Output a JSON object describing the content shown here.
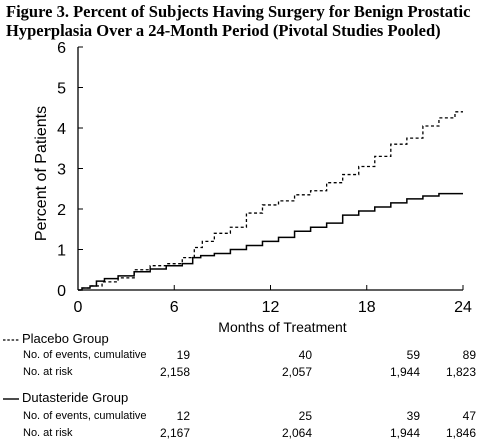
{
  "figure": {
    "title_line1": "Figure 3. Percent of Subjects Having Surgery for Benign Prostatic",
    "title_line2": "Hyperplasia Over a 24-Month Period (Pivotal Studies Pooled)"
  },
  "chart_data": {
    "type": "line",
    "xlabel": "Months of Treatment",
    "ylabel": "Percent of Patients",
    "xlim": [
      0,
      24
    ],
    "ylim": [
      0,
      6
    ],
    "xticks": [
      0,
      6,
      12,
      18,
      24
    ],
    "yticks": [
      0,
      1,
      2,
      3,
      4,
      5,
      6
    ],
    "grid": false,
    "legend": "below",
    "series": [
      {
        "name": "Placebo Group",
        "style": "dashed",
        "x": [
          0,
          0.5,
          1,
          2,
          3,
          4,
          5,
          6,
          7,
          7.5,
          8,
          9,
          10,
          11,
          12,
          13,
          14,
          15,
          16,
          17,
          18,
          19,
          20,
          21,
          22,
          23,
          24
        ],
        "y": [
          0,
          0.05,
          0.1,
          0.2,
          0.3,
          0.5,
          0.6,
          0.65,
          0.8,
          1.05,
          1.2,
          1.4,
          1.55,
          1.9,
          2.1,
          2.2,
          2.35,
          2.45,
          2.65,
          2.85,
          3.05,
          3.3,
          3.6,
          3.75,
          4.05,
          4.25,
          4.4
        ]
      },
      {
        "name": "Dutasteride Group",
        "style": "solid",
        "x": [
          0,
          0.5,
          1,
          1.3,
          2,
          3,
          4,
          5,
          6,
          7,
          7.3,
          8,
          9,
          10,
          11,
          12,
          13,
          14,
          15,
          16,
          17,
          18,
          19,
          20,
          21,
          22,
          23,
          24
        ],
        "y": [
          0,
          0.05,
          0.1,
          0.22,
          0.28,
          0.35,
          0.45,
          0.52,
          0.6,
          0.65,
          0.8,
          0.85,
          0.9,
          1.0,
          1.1,
          1.2,
          1.3,
          1.45,
          1.55,
          1.65,
          1.85,
          1.95,
          2.05,
          2.15,
          2.25,
          2.32,
          2.38,
          2.38
        ]
      }
    ]
  },
  "table": {
    "groups": [
      {
        "name": "Placebo Group",
        "rows": [
          {
            "label": "No. of events, cumulative",
            "values": [
              "19",
              "40",
              "59",
              "89"
            ]
          },
          {
            "label": "No. at risk",
            "values": [
              "2,158",
              "2,057",
              "1,944",
              "1,823"
            ]
          }
        ]
      },
      {
        "name": "Dutasteride Group",
        "rows": [
          {
            "label": "No. of events, cumulative",
            "values": [
              "12",
              "25",
              "39",
              "47"
            ]
          },
          {
            "label": "No. at risk",
            "values": [
              "2,167",
              "2,064",
              "1,944",
              "1,846"
            ]
          }
        ]
      }
    ]
  }
}
